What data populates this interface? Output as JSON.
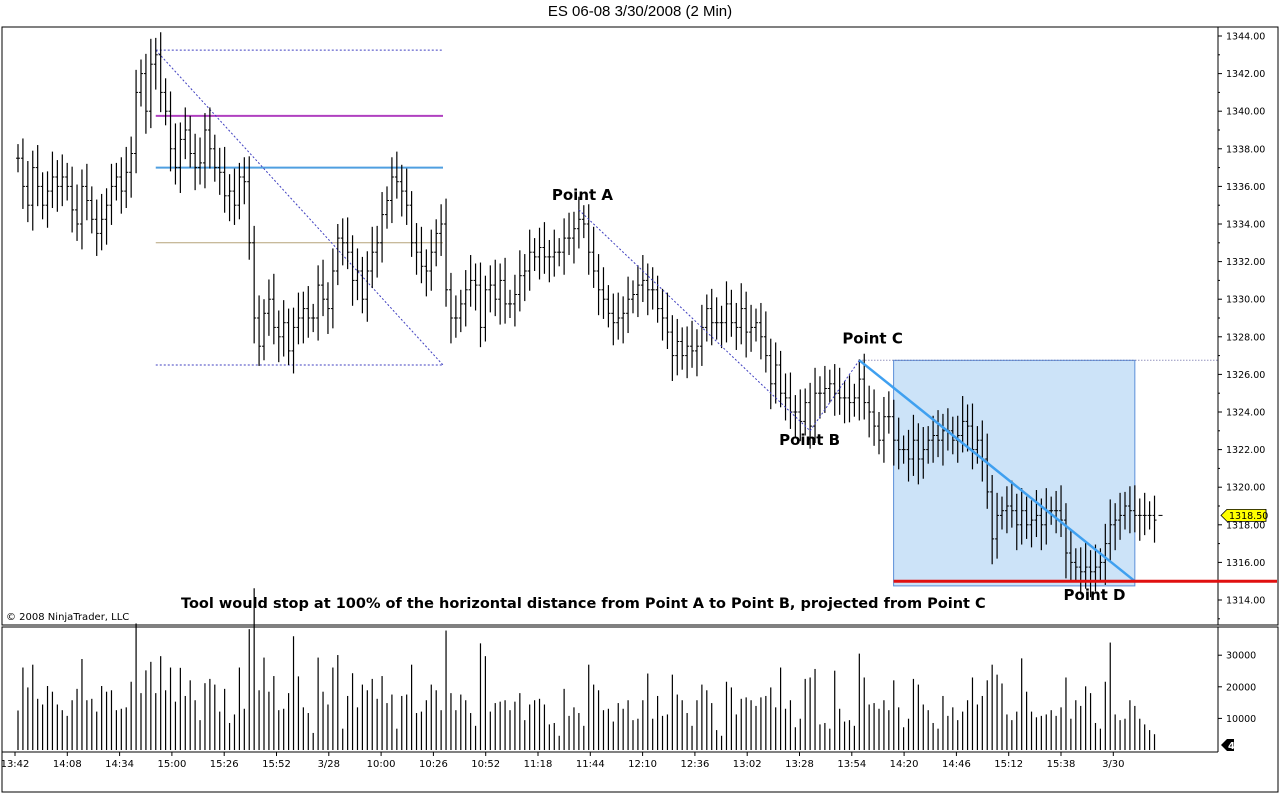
{
  "chart_title": "ES 06-08  3/30/2008 (2 Min)",
  "copyright": "© 2008 NinjaTrader, LLC",
  "caption": "Tool would stop at 100% of the horizontal distance from Point A to Point B, projected from Point C",
  "colors": {
    "bars": "#000000",
    "fib_blue": "#4f9fe0",
    "fib_purple": "#b040c0",
    "fib_tan": "#b6a37a",
    "range_dotted": "#4040c0",
    "box_fill": "#cce3f8",
    "box_edge": "#5b8fd8",
    "projection_line": "#3fa0f0",
    "target_line": "#e01010",
    "price_marker": "#ffff00"
  },
  "chart_data": {
    "type": "bar",
    "subtype": "ohlc",
    "instrument": "ES 06-08",
    "interval": "2 Min",
    "x_labels": [
      "13:42",
      "14:08",
      "14:34",
      "15:00",
      "15:26",
      "15:52",
      "3/28",
      "10:00",
      "10:26",
      "10:52",
      "11:18",
      "11:44",
      "12:10",
      "12:36",
      "13:02",
      "13:28",
      "13:54",
      "14:20",
      "14:46",
      "15:12",
      "15:38",
      "3/30"
    ],
    "ylim": [
      1313,
      1344.5
    ],
    "y_ticks": [
      "1314.00",
      "1316.00",
      "1318.00",
      "1320.00",
      "1322.00",
      "1324.00",
      "1326.00",
      "1328.00",
      "1330.00",
      "1332.00",
      "1334.00",
      "1336.00",
      "1338.00",
      "1340.00",
      "1342.00",
      "1344.00"
    ],
    "last_price": "1318.50",
    "points": [
      {
        "label": "Point A",
        "bar": 114,
        "price": 1334.75
      },
      {
        "label": "Point B",
        "bar": 161,
        "price": 1323.0
      },
      {
        "label": "Point C",
        "bar": 171,
        "price": 1326.75
      },
      {
        "label": "Point D",
        "bar": 218,
        "price": 1315.0
      }
    ],
    "fib_levels": [
      1343.25,
      1339.75,
      1337.0,
      1333.0,
      1326.5
    ],
    "closes": [
      1337.5,
      1336,
      1335,
      1337,
      1336,
      1335,
      1335.75,
      1336.5,
      1336,
      1336.5,
      1336,
      1334.75,
      1334,
      1336,
      1335.25,
      1334.25,
      1333.5,
      1334.25,
      1335,
      1336,
      1336.5,
      1335.75,
      1336.75,
      1337.75,
      1341,
      1342,
      1340,
      1342.5,
      1343,
      1341,
      1340,
      1338,
      1337,
      1338.5,
      1339,
      1337.75,
      1337,
      1337.25,
      1339,
      1338,
      1337,
      1336.75,
      1335.5,
      1335.75,
      1335,
      1336.5,
      1336.25,
      1333,
      1329,
      1327.5,
      1329.25,
      1330,
      1328.5,
      1328,
      1328.75,
      1327.25,
      1328.5,
      1329,
      1329.5,
      1329,
      1329,
      1330.75,
      1330,
      1329.5,
      1331.5,
      1333.25,
      1333,
      1332.5,
      1331,
      1331.5,
      1330,
      1331.5,
      1332.5,
      1333,
      1334.5,
      1335.25,
      1336.5,
      1336.25,
      1335.75,
      1335,
      1333,
      1332.5,
      1331.75,
      1331.5,
      1332.5,
      1333.5,
      1334,
      1330.5,
      1329,
      1329,
      1329.75,
      1330.5,
      1331,
      1330.75,
      1328.5,
      1330.5,
      1330.75,
      1330,
      1331,
      1329.75,
      1329.75,
      1330.25,
      1331.25,
      1331.5,
      1332.5,
      1332.25,
      1332.75,
      1332.25,
      1332.25,
      1332.5,
      1332.5,
      1333.25,
      1333.25,
      1333.75,
      1334.25,
      1334,
      1332.5,
      1331.5,
      1330.5,
      1330,
      1329.25,
      1328.75,
      1329,
      1329.25,
      1330,
      1330.25,
      1330.75,
      1331,
      1330.5,
      1330.5,
      1329.5,
      1329,
      1328.25,
      1327,
      1327.75,
      1327,
      1327.5,
      1327.25,
      1327.5,
      1328.5,
      1329.5,
      1328.75,
      1328.75,
      1328.75,
      1329.75,
      1328.75,
      1328.5,
      1329.5,
      1328.25,
      1328.5,
      1328.75,
      1328,
      1327,
      1325.5,
      1326.5,
      1325,
      1324.75,
      1324,
      1324,
      1323.5,
      1324.5,
      1323.25,
      1325,
      1325,
      1325.25,
      1325.5,
      1325,
      1324.75,
      1324.75,
      1324.5,
      1324.75,
      1325.75,
      1324.5,
      1324,
      1323.25,
      1322.5,
      1323.75,
      1323.75,
      1322.5,
      1322,
      1322,
      1321.5,
      1322.5,
      1321.5,
      1322,
      1322.5,
      1322.75,
      1322.5,
      1323,
      1323,
      1322.5,
      1322.75,
      1323.5,
      1323.25,
      1322,
      1322.5,
      1321.5,
      1319.75,
      1317.25,
      1318.5,
      1318.75,
      1319,
      1318.75,
      1318,
      1318.75,
      1318,
      1318.25,
      1318.5,
      1318,
      1318.75,
      1318.75,
      1318.75,
      1318.25,
      1316.5,
      1316,
      1315.75,
      1315.5,
      1315.75,
      1315.5,
      1315.75,
      1316,
      1317,
      1318,
      1318.25,
      1318.5,
      1319,
      1318.75,
      1318.5,
      1318.5,
      1318.5,
      1318.5,
      1318.25
    ],
    "volume_ticks": [
      "10000",
      "20000",
      "30000"
    ],
    "volume_ylim": [
      0,
      34000
    ],
    "volume_last": "4"
  }
}
